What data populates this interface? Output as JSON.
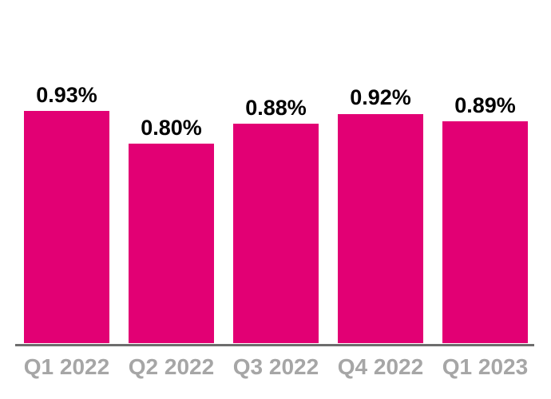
{
  "chart_data": {
    "type": "bar",
    "title": "",
    "xlabel": "",
    "ylabel": "",
    "categories": [
      "Q1 2022",
      "Q2 2022",
      "Q3 2022",
      "Q4 2022",
      "Q1 2023"
    ],
    "values": [
      0.93,
      0.8,
      0.88,
      0.92,
      0.89
    ],
    "value_labels": [
      "0.93%",
      "0.80%",
      "0.88%",
      "0.92%",
      "0.89%"
    ],
    "unit": "%",
    "ylim": [
      0,
      1.0
    ],
    "grid": false,
    "legend": false,
    "bar_color": "#E20074",
    "value_label_color": "#000000",
    "category_label_color": "#A6A6A6",
    "axis_line_color": "#6D6D6D",
    "background": "#FFFFFF"
  }
}
